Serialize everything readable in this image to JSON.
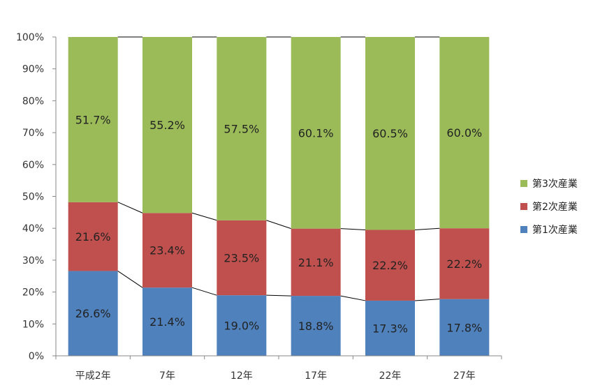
{
  "chart_data": {
    "type": "bar",
    "stacked": true,
    "normalized": true,
    "categories": [
      "平成2年",
      "7年",
      "12年",
      "17年",
      "22年",
      "27年"
    ],
    "series": [
      {
        "name": "第1次産業",
        "color": "#4f81bd",
        "values": [
          26.6,
          21.4,
          19.0,
          18.8,
          17.3,
          17.8
        ],
        "labels": [
          "26.6%",
          "21.4%",
          "19.0%",
          "18.8%",
          "17.3%",
          "17.8%"
        ]
      },
      {
        "name": "第2次産業",
        "color": "#c0504d",
        "values": [
          21.6,
          23.4,
          23.5,
          21.1,
          22.2,
          22.2
        ],
        "labels": [
          "21.6%",
          "23.4%",
          "23.5%",
          "21.1%",
          "22.2%",
          "22.2%"
        ]
      },
      {
        "name": "第3次産業",
        "color": "#9bbb59",
        "values": [
          51.7,
          55.2,
          57.5,
          60.1,
          60.5,
          60.0
        ],
        "labels": [
          "51.7%",
          "55.2%",
          "57.5%",
          "60.1%",
          "60.5%",
          "60.0%"
        ]
      }
    ],
    "ylim": [
      0,
      100
    ],
    "yticks": [
      "0%",
      "10%",
      "20%",
      "30%",
      "40%",
      "50%",
      "60%",
      "70%",
      "80%",
      "90%",
      "100%"
    ],
    "series_lines": true,
    "grid": false,
    "legend": "right",
    "legend_order": [
      "第3次産業",
      "第2次産業",
      "第1次産業"
    ]
  }
}
